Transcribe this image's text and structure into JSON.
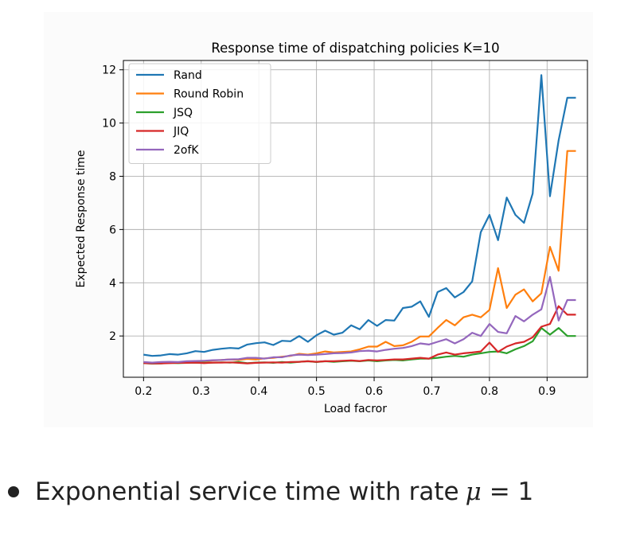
{
  "chart_data": {
    "type": "line",
    "title": "Response time of dispatching policies K=10",
    "xlabel": "Load facror",
    "ylabel": "Expected Response time",
    "xlim": [
      0.165,
      0.97
    ],
    "ylim": [
      0.45,
      12.35
    ],
    "xticks": [
      0.2,
      0.3,
      0.4,
      0.5,
      0.6,
      0.7,
      0.8,
      0.9
    ],
    "xtick_labels": [
      "0.2",
      "0.3",
      "0.4",
      "0.5",
      "0.6",
      "0.7",
      "0.8",
      "0.9"
    ],
    "yticks": [
      2,
      4,
      6,
      8,
      10,
      12
    ],
    "ytick_labels": [
      "2",
      "4",
      "6",
      "8",
      "10",
      "12"
    ],
    "grid": true,
    "legend_position": "upper-left",
    "x": [
      0.2,
      0.215,
      0.23,
      0.245,
      0.26,
      0.275,
      0.29,
      0.305,
      0.32,
      0.335,
      0.35,
      0.365,
      0.38,
      0.395,
      0.41,
      0.425,
      0.44,
      0.455,
      0.47,
      0.485,
      0.5,
      0.515,
      0.53,
      0.545,
      0.56,
      0.575,
      0.59,
      0.605,
      0.62,
      0.635,
      0.65,
      0.665,
      0.68,
      0.695,
      0.71,
      0.725,
      0.74,
      0.755,
      0.77,
      0.785,
      0.8,
      0.815,
      0.83,
      0.845,
      0.86,
      0.875,
      0.89,
      0.905,
      0.92,
      0.935,
      0.95
    ],
    "series": [
      {
        "name": "Rand",
        "color": "#1f77b4",
        "values": [
          1.3,
          1.25,
          1.27,
          1.32,
          1.3,
          1.35,
          1.43,
          1.4,
          1.48,
          1.52,
          1.55,
          1.53,
          1.68,
          1.73,
          1.76,
          1.66,
          1.82,
          1.8,
          2.0,
          1.78,
          2.03,
          2.2,
          2.05,
          2.12,
          2.4,
          2.25,
          2.6,
          2.38,
          2.6,
          2.58,
          3.05,
          3.1,
          3.3,
          2.72,
          3.65,
          3.8,
          3.45,
          3.65,
          4.05,
          5.9,
          6.55,
          5.6,
          7.2,
          6.55,
          6.25,
          7.35,
          11.8,
          7.25,
          9.35,
          10.95,
          10.95
        ]
      },
      {
        "name": "Round Robin",
        "color": "#ff7f0e",
        "values": [
          1.0,
          0.98,
          0.99,
          1.02,
          1.0,
          1.03,
          1.05,
          1.05,
          1.08,
          1.1,
          1.12,
          1.1,
          1.14,
          1.12,
          1.16,
          1.18,
          1.22,
          1.25,
          1.33,
          1.3,
          1.35,
          1.42,
          1.38,
          1.4,
          1.42,
          1.5,
          1.6,
          1.6,
          1.78,
          1.62,
          1.65,
          1.78,
          1.98,
          1.98,
          2.3,
          2.6,
          2.4,
          2.7,
          2.8,
          2.7,
          2.98,
          4.55,
          3.05,
          3.55,
          3.75,
          3.3,
          3.6,
          5.35,
          4.45,
          8.95,
          8.95
        ]
      },
      {
        "name": "JSQ",
        "color": "#2ca02c",
        "values": [
          0.98,
          0.96,
          0.97,
          0.99,
          0.98,
          0.99,
          1.0,
          0.99,
          1.0,
          1.01,
          1.0,
          1.02,
          0.98,
          1.0,
          1.01,
          0.99,
          1.02,
          1.0,
          1.03,
          1.05,
          1.02,
          1.05,
          1.03,
          1.05,
          1.07,
          1.05,
          1.08,
          1.05,
          1.08,
          1.1,
          1.08,
          1.12,
          1.15,
          1.15,
          1.18,
          1.22,
          1.25,
          1.22,
          1.3,
          1.35,
          1.4,
          1.42,
          1.35,
          1.5,
          1.62,
          1.8,
          2.3,
          2.05,
          2.3,
          2.0,
          2.0
        ]
      },
      {
        "name": "JIQ",
        "color": "#d62728",
        "values": [
          0.98,
          0.97,
          0.97,
          0.98,
          0.99,
          0.99,
          1.0,
          0.98,
          1.0,
          1.0,
          1.01,
          0.99,
          0.97,
          0.99,
          1.0,
          1.01,
          1.0,
          1.02,
          1.03,
          1.05,
          1.03,
          1.05,
          1.05,
          1.07,
          1.08,
          1.06,
          1.1,
          1.08,
          1.1,
          1.12,
          1.12,
          1.15,
          1.18,
          1.15,
          1.3,
          1.38,
          1.3,
          1.35,
          1.38,
          1.42,
          1.75,
          1.4,
          1.6,
          1.72,
          1.78,
          1.95,
          2.35,
          2.45,
          3.12,
          2.8,
          2.8
        ]
      },
      {
        "name": "2ofK",
        "color": "#9467bd",
        "values": [
          1.02,
          1.0,
          1.02,
          1.03,
          1.02,
          1.05,
          1.06,
          1.07,
          1.09,
          1.1,
          1.12,
          1.13,
          1.18,
          1.18,
          1.15,
          1.2,
          1.2,
          1.27,
          1.3,
          1.28,
          1.3,
          1.32,
          1.35,
          1.36,
          1.38,
          1.43,
          1.45,
          1.42,
          1.48,
          1.52,
          1.55,
          1.62,
          1.72,
          1.68,
          1.78,
          1.88,
          1.72,
          1.88,
          2.12,
          2.0,
          2.45,
          2.15,
          2.1,
          2.75,
          2.55,
          2.8,
          3.0,
          4.22,
          2.58,
          3.35,
          3.35
        ]
      }
    ]
  },
  "caption": {
    "text": "Exponential service time with rate",
    "math_symbol": "μ",
    "equation": "= 1"
  }
}
